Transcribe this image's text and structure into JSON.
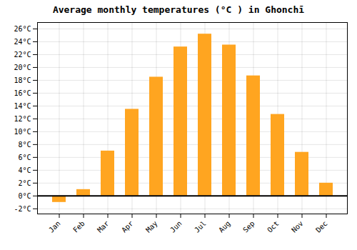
{
  "chart_data": {
    "type": "bar",
    "title": "Average monthly temperatures (°C ) in Ghonchī",
    "categories": [
      "Jan",
      "Feb",
      "Mar",
      "Apr",
      "May",
      "Jun",
      "Jul",
      "Aug",
      "Sep",
      "Oct",
      "Nov",
      "Dec"
    ],
    "values": [
      -1.0,
      1.0,
      7.0,
      13.5,
      18.5,
      23.2,
      25.2,
      23.5,
      18.7,
      12.7,
      6.8,
      2.0
    ],
    "color": "#FFA520",
    "ylim": [
      -2.8,
      27
    ],
    "yticks": [
      {
        "value": -2,
        "label": "-2°C"
      },
      {
        "value": 0,
        "label": "0°C"
      },
      {
        "value": 2,
        "label": "2°C"
      },
      {
        "value": 4,
        "label": "4°C"
      },
      {
        "value": 6,
        "label": "6°C"
      },
      {
        "value": 8,
        "label": "8°C"
      },
      {
        "value": 10,
        "label": "10°C"
      },
      {
        "value": 12,
        "label": "12°C"
      },
      {
        "value": 14,
        "label": "14°C"
      },
      {
        "value": 16,
        "label": "16°C"
      },
      {
        "value": 18,
        "label": "18°C"
      },
      {
        "value": 20,
        "label": "20°C"
      },
      {
        "value": 22,
        "label": "22°C"
      },
      {
        "value": 24,
        "label": "24°C"
      },
      {
        "value": 26,
        "label": "26°C"
      }
    ],
    "grid": true
  }
}
